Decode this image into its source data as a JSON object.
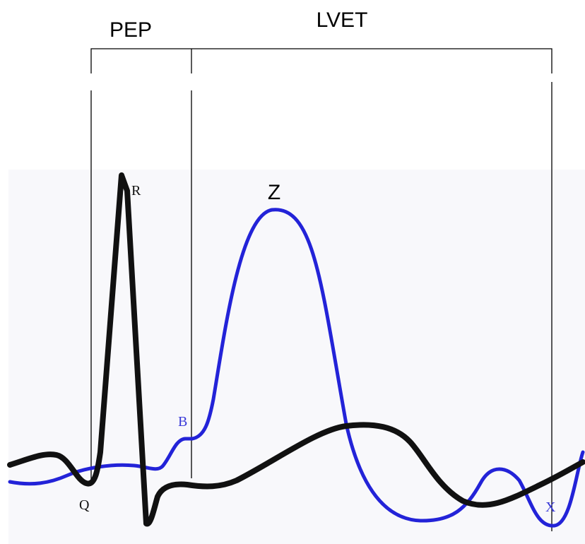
{
  "intervals": {
    "pep": "PEP",
    "lvet": "LVET"
  },
  "points": {
    "r": "R",
    "z": "Z",
    "b": "B",
    "q": "Q",
    "x": "X"
  },
  "colors": {
    "ecg": "#111111",
    "icg": "#2323d8",
    "background_panel": "#f8f8fb"
  }
}
